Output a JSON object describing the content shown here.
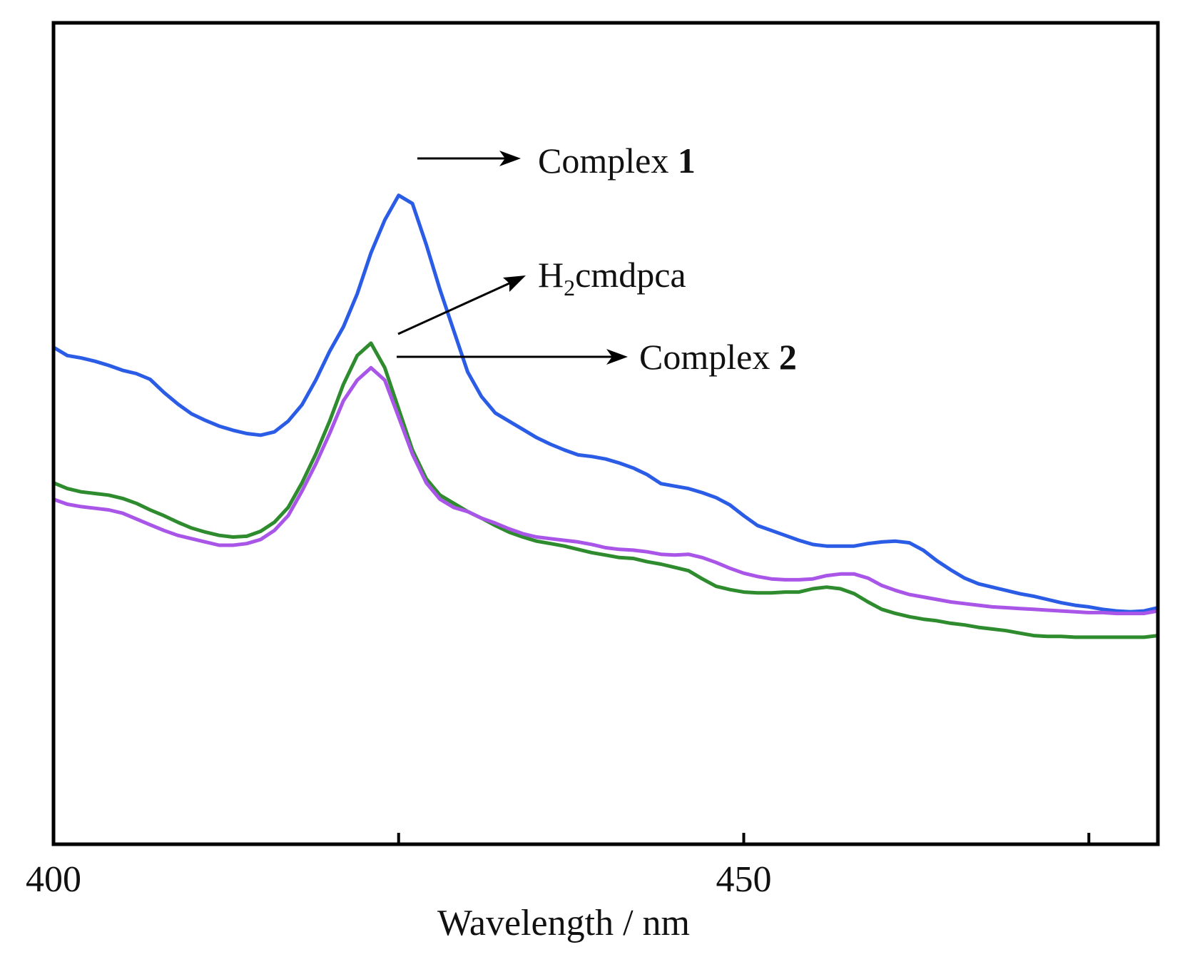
{
  "chart_data": {
    "type": "line",
    "title": "",
    "xlabel": "Wavelength / nm",
    "ylabel": "",
    "xlim": [
      400,
      480
    ],
    "ylim": [
      0,
      100
    ],
    "x_ticks": [
      400,
      425,
      450,
      475
    ],
    "x_tick_labels": [
      "400",
      "",
      "450",
      ""
    ],
    "grid": false,
    "legend": "none",
    "series": [
      {
        "name": "Complex 1",
        "color": "#2b5ce6",
        "x": [
          400,
          401,
          402,
          403,
          404,
          405,
          406,
          407,
          408,
          409,
          410,
          411,
          412,
          413,
          414,
          415,
          416,
          417,
          418,
          419,
          420,
          421,
          422,
          423,
          424,
          425,
          426,
          427,
          428,
          429,
          430,
          431,
          432,
          433,
          434,
          435,
          436,
          437,
          438,
          439,
          440,
          441,
          442,
          443,
          444,
          445,
          446,
          447,
          448,
          449,
          450,
          451,
          452,
          453,
          454,
          455,
          456,
          457,
          458,
          459,
          460,
          461,
          462,
          463,
          464,
          465,
          466,
          467,
          468,
          469,
          470,
          471,
          472,
          473,
          474,
          475,
          476,
          477,
          478,
          479,
          480
        ],
        "y": [
          60.5,
          59.5,
          59.2,
          58.8,
          58.3,
          57.7,
          57.3,
          56.6,
          55,
          53.6,
          52.4,
          51.6,
          50.9,
          50.4,
          50,
          49.8,
          50.2,
          51.5,
          53.5,
          56.5,
          60,
          63,
          67,
          72,
          76,
          79,
          78,
          73,
          67.5,
          62.5,
          57.5,
          54.5,
          52.5,
          51.5,
          50.5,
          49.5,
          48.7,
          48,
          47.4,
          47.2,
          46.9,
          46.4,
          45.8,
          45,
          43.9,
          43.6,
          43.3,
          42.8,
          42.2,
          41.3,
          40,
          38.8,
          38.2,
          37.6,
          37,
          36.5,
          36.3,
          36.3,
          36.3,
          36.6,
          36.8,
          36.9,
          36.7,
          35.8,
          34.5,
          33.4,
          32.4,
          31.7,
          31.3,
          30.9,
          30.5,
          30.2,
          29.8,
          29.4,
          29.1,
          28.9,
          28.6,
          28.4,
          28.3,
          28.4,
          28.8
        ]
      },
      {
        "name": "H2cmdpca",
        "color": "#2e8b2e",
        "x": [
          400,
          401,
          402,
          403,
          404,
          405,
          406,
          407,
          408,
          409,
          410,
          411,
          412,
          413,
          414,
          415,
          416,
          417,
          418,
          419,
          420,
          421,
          422,
          423,
          424,
          425,
          426,
          427,
          428,
          429,
          430,
          431,
          432,
          433,
          434,
          435,
          436,
          437,
          438,
          439,
          440,
          441,
          442,
          443,
          444,
          445,
          446,
          447,
          448,
          449,
          450,
          451,
          452,
          453,
          454,
          455,
          456,
          457,
          458,
          459,
          460,
          461,
          462,
          463,
          464,
          465,
          466,
          467,
          468,
          469,
          470,
          471,
          472,
          473,
          474,
          475,
          476,
          477,
          478,
          479,
          480
        ],
        "y": [
          44,
          43.3,
          42.9,
          42.7,
          42.5,
          42.1,
          41.5,
          40.7,
          40,
          39.2,
          38.5,
          38,
          37.6,
          37.4,
          37.5,
          38.1,
          39.2,
          41,
          44,
          47.5,
          51.5,
          56,
          59.5,
          61,
          58,
          53,
          48,
          44.5,
          42.5,
          41.5,
          40.5,
          39.7,
          38.8,
          38,
          37.4,
          36.9,
          36.6,
          36.3,
          35.9,
          35.5,
          35.2,
          34.9,
          34.8,
          34.4,
          34.1,
          33.7,
          33.3,
          32.3,
          31.4,
          31,
          30.7,
          30.6,
          30.6,
          30.7,
          30.7,
          31.1,
          31.3,
          31.1,
          30.5,
          29.5,
          28.6,
          28.1,
          27.7,
          27.4,
          27.2,
          26.9,
          26.7,
          26.4,
          26.2,
          26,
          25.7,
          25.4,
          25.3,
          25.3,
          25.2,
          25.2,
          25.2,
          25.2,
          25.2,
          25.2,
          25.4
        ]
      },
      {
        "name": "Complex 2",
        "color": "#a855e8",
        "x": [
          400,
          401,
          402,
          403,
          404,
          405,
          406,
          407,
          408,
          409,
          410,
          411,
          412,
          413,
          414,
          415,
          416,
          417,
          418,
          419,
          420,
          421,
          422,
          423,
          424,
          425,
          426,
          427,
          428,
          429,
          430,
          431,
          432,
          433,
          434,
          435,
          436,
          437,
          438,
          439,
          440,
          441,
          442,
          443,
          444,
          445,
          446,
          447,
          448,
          449,
          450,
          451,
          452,
          453,
          454,
          455,
          456,
          457,
          458,
          459,
          460,
          461,
          462,
          463,
          464,
          465,
          466,
          467,
          468,
          469,
          470,
          471,
          472,
          473,
          474,
          475,
          476,
          477,
          478,
          479,
          480
        ],
        "y": [
          42,
          41.4,
          41.1,
          40.9,
          40.7,
          40.3,
          39.6,
          38.9,
          38.2,
          37.6,
          37.2,
          36.8,
          36.4,
          36.4,
          36.6,
          37.1,
          38.2,
          40,
          43,
          46.3,
          50,
          54,
          56.5,
          58,
          56.5,
          52,
          47.5,
          44,
          42,
          41,
          40.5,
          39.7,
          39.1,
          38.4,
          37.8,
          37.4,
          37.2,
          37,
          36.8,
          36.5,
          36.1,
          35.9,
          35.8,
          35.6,
          35.3,
          35.2,
          35.3,
          34.9,
          34.3,
          33.6,
          33,
          32.6,
          32.3,
          32.2,
          32.2,
          32.3,
          32.7,
          32.9,
          32.9,
          32.4,
          31.5,
          30.9,
          30.4,
          30.1,
          29.8,
          29.5,
          29.3,
          29.1,
          28.9,
          28.8,
          28.7,
          28.6,
          28.5,
          28.4,
          28.3,
          28.2,
          28.2,
          28.1,
          28.1,
          28.1,
          28.4
        ]
      }
    ],
    "annotations": [
      {
        "name": "complex-1",
        "text": "Complex ",
        "bold": "1",
        "series": "Complex 1"
      },
      {
        "name": "h2cmdpca",
        "text": "H",
        "sub": "2",
        "rest": "cmdpca",
        "series": "H2cmdpca"
      },
      {
        "name": "complex-2",
        "text": "Complex ",
        "bold": "2",
        "series": "Complex 2"
      }
    ]
  }
}
